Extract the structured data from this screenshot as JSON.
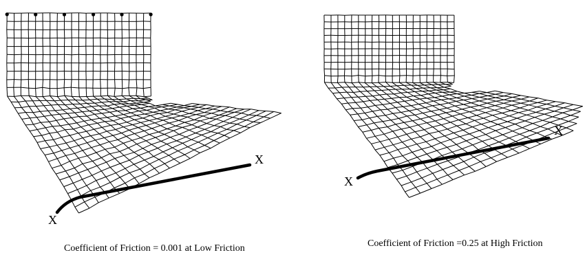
{
  "panels": [
    {
      "caption": "Coefficient of Friction = 0.001 at Low Friction",
      "marker_start": "X",
      "marker_end": "X"
    },
    {
      "caption": "Coefficient of Friction =0.25 at High Friction",
      "marker_start": "X",
      "marker_end": "X"
    }
  ],
  "colors": {
    "mesh": "#000000",
    "centerline": "#000000",
    "background": "#ffffff"
  }
}
